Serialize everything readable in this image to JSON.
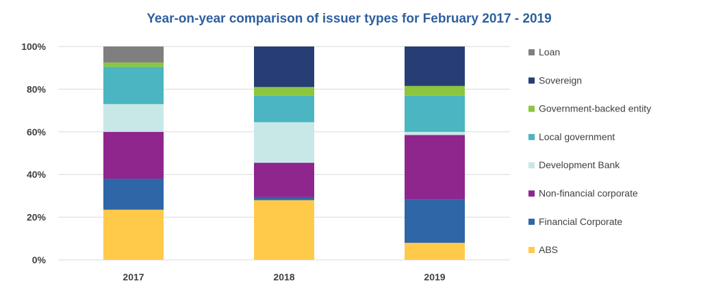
{
  "chart_data": {
    "type": "bar",
    "stacked": true,
    "normalized": true,
    "title": "Year-on-year comparison of issuer types for February 2017 - 2019",
    "xlabel": "",
    "ylabel": "",
    "categories": [
      "2017",
      "2018",
      "2019"
    ],
    "ylim": [
      0,
      100
    ],
    "yticks": [
      "0%",
      "20%",
      "40%",
      "60%",
      "80%",
      "100%"
    ],
    "grid": true,
    "legend_position": "right",
    "series": [
      {
        "name": "ABS",
        "color": "#ffc94a",
        "values": [
          23.5,
          28,
          8
        ]
      },
      {
        "name": "Financial Corporate",
        "color": "#2e66a8",
        "values": [
          14.5,
          1.5,
          20.5
        ]
      },
      {
        "name": "Non-financial corporate",
        "color": "#8e268e",
        "values": [
          22,
          16,
          30
        ]
      },
      {
        "name": "Development Bank",
        "color": "#c8e8e8",
        "values": [
          13,
          19,
          1.5
        ]
      },
      {
        "name": "Local government",
        "color": "#4bb5c1",
        "values": [
          17.5,
          12.5,
          17
        ]
      },
      {
        "name": "Government-backed entity",
        "color": "#8cc63e",
        "values": [
          2,
          4,
          4.5
        ]
      },
      {
        "name": "Sovereign",
        "color": "#263e73",
        "values": [
          0,
          19,
          18.5
        ]
      },
      {
        "name": "Loan",
        "color": "#7f7f7f",
        "values": [
          7.5,
          0,
          0
        ]
      }
    ]
  }
}
